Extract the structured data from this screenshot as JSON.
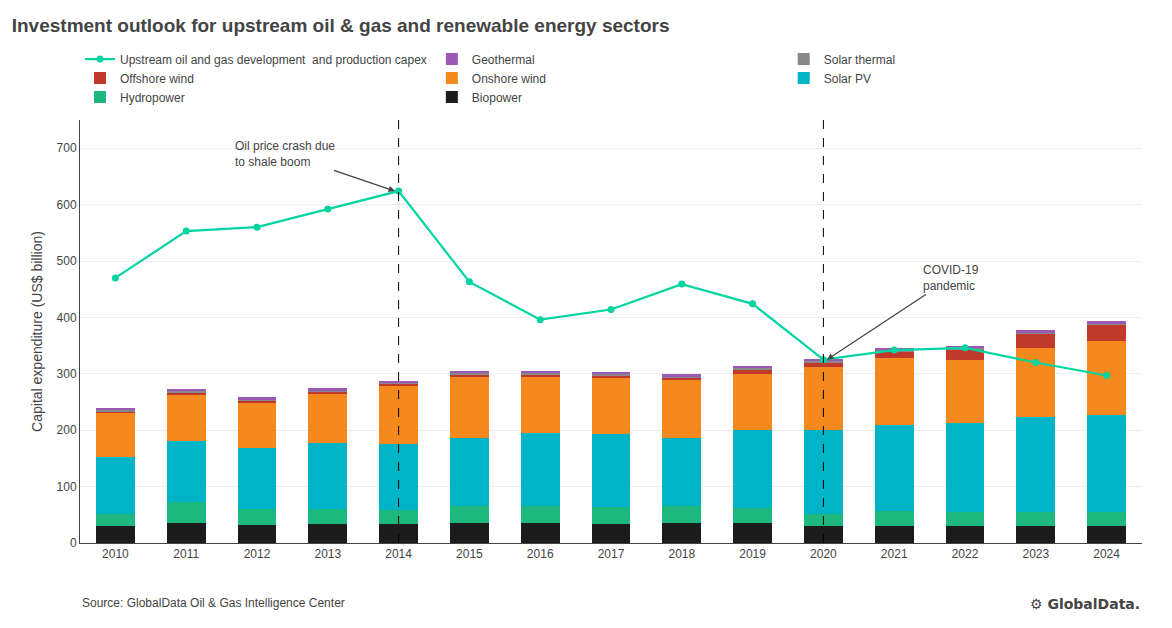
{
  "chart_data": {
    "type": "bar",
    "stacked": true,
    "title": "Investment outlook for upstream oil & gas and renewable energy sectors",
    "ylabel": "Capital expenditure (US$ billion)",
    "categories": [
      2010,
      2011,
      2012,
      2013,
      2014,
      2015,
      2016,
      2017,
      2018,
      2019,
      2020,
      2021,
      2022,
      2023,
      2024
    ],
    "series": [
      {
        "name": "Biopower",
        "type": "bar",
        "color": "#1c1c1c",
        "values": [
          30,
          35,
          32,
          33,
          33,
          35,
          35,
          33,
          35,
          35,
          30,
          30,
          30,
          30,
          30
        ]
      },
      {
        "name": "Hydropower",
        "type": "bar",
        "color": "#1db87e",
        "values": [
          22,
          38,
          28,
          27,
          25,
          30,
          30,
          30,
          30,
          27,
          22,
          27,
          25,
          25,
          25
        ]
      },
      {
        "name": "Solar PV",
        "type": "bar",
        "color": "#00b4c8",
        "values": [
          100,
          108,
          108,
          118,
          118,
          122,
          130,
          130,
          122,
          138,
          148,
          153,
          158,
          168,
          172
        ]
      },
      {
        "name": "Onshore wind",
        "type": "bar",
        "color": "#f5891e",
        "values": [
          78,
          82,
          80,
          86,
          102,
          108,
          100,
          100,
          102,
          100,
          112,
          118,
          112,
          122,
          132
        ]
      },
      {
        "name": "Offshore wind",
        "type": "bar",
        "color": "#c0392b",
        "values": [
          4,
          4,
          4,
          4,
          4,
          4,
          4,
          4,
          4,
          8,
          8,
          12,
          18,
          26,
          28
        ]
      },
      {
        "name": "Solar thermal",
        "type": "bar",
        "color": "#888888",
        "values": [
          3,
          3,
          3,
          3,
          3,
          3,
          3,
          3,
          3,
          3,
          3,
          3,
          3,
          3,
          3
        ]
      },
      {
        "name": "Geothermal",
        "type": "bar",
        "color": "#9b59b6",
        "values": [
          3,
          3,
          3,
          3,
          3,
          3,
          3,
          3,
          3,
          3,
          3,
          3,
          3,
          3,
          3
        ]
      },
      {
        "name": "Upstream oil and gas development  and production capex",
        "type": "line",
        "color": "#00d4a0",
        "marker": "circle",
        "line_style": "solid",
        "values": [
          470,
          553,
          560,
          592,
          624,
          463,
          396,
          414,
          459,
          424,
          325,
          342,
          346,
          320,
          297
        ]
      }
    ],
    "ylim": [
      0,
      750
    ],
    "yticks": [
      0,
      100,
      200,
      300,
      400,
      500,
      600,
      700
    ],
    "grid": true,
    "legend": "top",
    "annotations": [
      {
        "text": "Oil price crash due\nto shale boom",
        "x": 2014,
        "y": 624
      },
      {
        "text": "COVID-19\npandemic",
        "x": 2020,
        "y": 325
      }
    ],
    "source": "Source: GlobalData Oil & Gas Intelligence Center",
    "branding": "⚙ GlobalData."
  }
}
